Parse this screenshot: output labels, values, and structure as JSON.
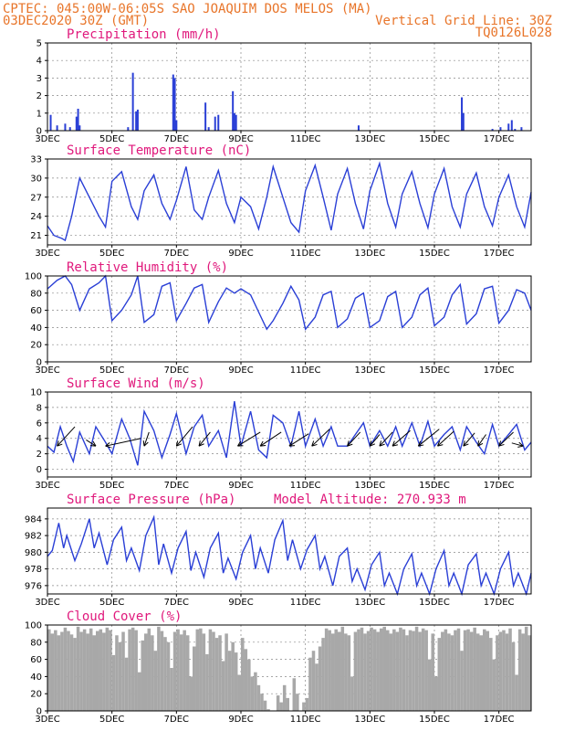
{
  "header": {
    "line1": "CPTEC:   045:00W-06:05S  SAO JOAQUIM DOS MELOS (MA)",
    "line2_left": "03DEC2020 30Z (GMT)",
    "line2_right": "Vertical Grid Line: 30Z",
    "line3_right": "TQ0126L028"
  },
  "colors": {
    "header": "#e8752a",
    "panel_title": "#e0197c",
    "series": "#2a3fd6",
    "cloud": "#a8a8a8"
  },
  "x_axis": {
    "start_day": 3,
    "end_day": 18,
    "tick_days": [
      3,
      5,
      7,
      9,
      11,
      13,
      15,
      17
    ],
    "tick_labels": [
      "3DEC",
      "5DEC",
      "7DEC",
      "9DEC",
      "11DEC",
      "13DEC",
      "15DEC",
      "17DEC"
    ]
  },
  "chart_data": [
    {
      "id": "precip",
      "type": "bar",
      "title": "Precipitation (mm/h)",
      "ylim": [
        0,
        5
      ],
      "yticks": [
        0,
        1,
        2,
        3,
        4,
        5
      ],
      "points": [
        [
          3.1,
          0.9
        ],
        [
          3.3,
          0.3
        ],
        [
          3.55,
          0.4
        ],
        [
          3.7,
          0.2
        ],
        [
          3.9,
          0.8
        ],
        [
          3.95,
          1.25
        ],
        [
          4.0,
          0.3
        ],
        [
          5.5,
          0.2
        ],
        [
          5.65,
          3.3
        ],
        [
          5.75,
          1.1
        ],
        [
          5.8,
          1.2
        ],
        [
          6.9,
          3.2
        ],
        [
          6.95,
          3.0
        ],
        [
          7.0,
          0.6
        ],
        [
          7.9,
          1.6
        ],
        [
          8.0,
          0.2
        ],
        [
          8.2,
          0.8
        ],
        [
          8.3,
          0.9
        ],
        [
          8.75,
          2.25
        ],
        [
          8.8,
          1.0
        ],
        [
          8.85,
          0.9
        ],
        [
          12.65,
          0.3
        ],
        [
          15.85,
          1.9
        ],
        [
          15.9,
          1.0
        ],
        [
          16.8,
          0.1
        ],
        [
          17.05,
          0.2
        ],
        [
          17.3,
          0.4
        ],
        [
          17.4,
          0.6
        ],
        [
          17.5,
          0.1
        ],
        [
          17.7,
          0.2
        ]
      ]
    },
    {
      "id": "temp",
      "type": "line",
      "title": "Surface Temperature (nC)",
      "ylim": [
        19.5,
        33
      ],
      "yticks": [
        21,
        24,
        27,
        30,
        33
      ],
      "x": [
        3.0,
        3.2,
        3.45,
        3.55,
        3.75,
        4.0,
        4.3,
        4.6,
        4.8,
        5.0,
        5.3,
        5.6,
        5.8,
        6.0,
        6.3,
        6.55,
        6.8,
        7.0,
        7.3,
        7.55,
        7.8,
        8.0,
        8.3,
        8.55,
        8.8,
        9.0,
        9.3,
        9.55,
        9.8,
        10.0,
        10.3,
        10.55,
        10.8,
        11.0,
        11.3,
        11.55,
        11.8,
        12.0,
        12.3,
        12.55,
        12.8,
        13.0,
        13.3,
        13.55,
        13.8,
        14.0,
        14.3,
        14.55,
        14.8,
        15.0,
        15.3,
        15.55,
        15.8,
        16.0,
        16.3,
        16.55,
        16.8,
        17.0,
        17.3,
        17.55,
        17.8,
        18.0
      ],
      "y": [
        22.5,
        21.0,
        20.5,
        20.2,
        24.0,
        30.0,
        27.0,
        24.0,
        22.3,
        29.5,
        31.0,
        25.5,
        23.5,
        28.0,
        30.5,
        26.0,
        23.5,
        26.5,
        31.8,
        25.0,
        23.5,
        27.0,
        31.2,
        26.0,
        23.0,
        27.0,
        25.5,
        22.0,
        27.0,
        31.8,
        27.0,
        23.0,
        21.5,
        28.0,
        32.0,
        27.0,
        21.8,
        27.5,
        31.5,
        26.0,
        22.0,
        28.0,
        32.3,
        26.0,
        22.3,
        27.5,
        31.0,
        26.0,
        22.2,
        27.5,
        31.5,
        25.5,
        22.3,
        27.5,
        30.8,
        25.5,
        22.5,
        27.0,
        30.5,
        25.5,
        22.3,
        27.8
      ]
    },
    {
      "id": "rh",
      "type": "line",
      "title": "Relative Humidity (%)",
      "ylim": [
        0,
        100
      ],
      "yticks": [
        0,
        20,
        40,
        60,
        80,
        100
      ],
      "x": [
        3.0,
        3.3,
        3.55,
        3.75,
        4.0,
        4.3,
        4.6,
        4.8,
        5.0,
        5.3,
        5.6,
        5.8,
        6.0,
        6.3,
        6.55,
        6.8,
        7.0,
        7.3,
        7.55,
        7.8,
        8.0,
        8.3,
        8.55,
        8.8,
        9.0,
        9.3,
        9.55,
        9.8,
        10.0,
        10.3,
        10.55,
        10.8,
        11.0,
        11.3,
        11.55,
        11.8,
        12.0,
        12.3,
        12.55,
        12.8,
        13.0,
        13.3,
        13.55,
        13.8,
        14.0,
        14.3,
        14.55,
        14.8,
        15.0,
        15.3,
        15.55,
        15.8,
        16.0,
        16.3,
        16.55,
        16.8,
        17.0,
        17.3,
        17.55,
        17.8,
        18.0
      ],
      "y": [
        85,
        95,
        100,
        90,
        60,
        85,
        92,
        100,
        48,
        60,
        78,
        100,
        46,
        55,
        88,
        92,
        48,
        68,
        86,
        90,
        46,
        70,
        86,
        80,
        85,
        78,
        58,
        38,
        48,
        68,
        88,
        72,
        38,
        52,
        78,
        82,
        40,
        50,
        74,
        80,
        40,
        48,
        76,
        82,
        40,
        52,
        78,
        86,
        42,
        52,
        78,
        90,
        44,
        56,
        85,
        88,
        45,
        60,
        84,
        80,
        60
      ]
    },
    {
      "id": "wind",
      "type": "line",
      "title": "Surface Wind (m/s)",
      "ylim": [
        -1,
        10
      ],
      "yticks": [
        0,
        2,
        4,
        6,
        8,
        10
      ],
      "x": [
        3.0,
        3.2,
        3.4,
        3.6,
        3.8,
        4.0,
        4.3,
        4.5,
        4.8,
        5.0,
        5.3,
        5.55,
        5.8,
        6.0,
        6.3,
        6.55,
        6.8,
        7.0,
        7.3,
        7.55,
        7.8,
        8.0,
        8.3,
        8.55,
        8.8,
        9.0,
        9.3,
        9.55,
        9.8,
        10.0,
        10.3,
        10.55,
        10.8,
        11.0,
        11.3,
        11.55,
        11.8,
        12.0,
        12.3,
        12.55,
        12.8,
        13.0,
        13.3,
        13.55,
        13.8,
        14.0,
        14.3,
        14.55,
        14.8,
        15.0,
        15.3,
        15.55,
        15.8,
        16.0,
        16.3,
        16.55,
        16.8,
        17.0,
        17.3,
        17.55,
        17.8,
        18.0
      ],
      "y": [
        3.0,
        2.2,
        5.5,
        3.0,
        1.0,
        4.8,
        2.0,
        5.5,
        3.5,
        2.0,
        6.5,
        4.0,
        0.5,
        7.5,
        5.0,
        1.5,
        4.5,
        7.2,
        2.0,
        5.5,
        7.0,
        3.0,
        5.0,
        1.5,
        8.8,
        3.0,
        7.5,
        2.5,
        1.5,
        7.0,
        6.0,
        3.0,
        7.5,
        3.0,
        6.5,
        3.0,
        5.5,
        3.0,
        3.0,
        4.5,
        6.0,
        3.0,
        5.0,
        3.0,
        5.5,
        3.0,
        6.0,
        3.0,
        6.2,
        3.0,
        4.5,
        5.5,
        2.5,
        5.5,
        3.5,
        2.0,
        5.8,
        3.0,
        4.5,
        5.8,
        2.5,
        3.5
      ],
      "vectors": [
        {
          "x": 3.3,
          "dx": 0.55,
          "dy": 2.5
        },
        {
          "x": 4.5,
          "dx": -0.3,
          "dy": 0.8
        },
        {
          "x": 4.8,
          "dx": 1.1,
          "dy": 1.0
        },
        {
          "x": 6.0,
          "dx": 0.15,
          "dy": 1.8
        },
        {
          "x": 7.0,
          "dx": 0.5,
          "dy": 2.5
        },
        {
          "x": 7.7,
          "dx": 0.35,
          "dy": 1.8
        },
        {
          "x": 8.9,
          "dx": 0.7,
          "dy": 1.8
        },
        {
          "x": 9.6,
          "dx": 0.65,
          "dy": 1.8
        },
        {
          "x": 10.5,
          "dx": 0.6,
          "dy": 1.6
        },
        {
          "x": 11.2,
          "dx": 0.55,
          "dy": 2.2
        },
        {
          "x": 12.3,
          "dx": 0.4,
          "dy": 1.8
        },
        {
          "x": 13.0,
          "dx": 0.3,
          "dy": 1.5
        },
        {
          "x": 13.3,
          "dx": 0.4,
          "dy": 1.8
        },
        {
          "x": 13.7,
          "dx": 0.55,
          "dy": 2.0
        },
        {
          "x": 14.5,
          "dx": 0.65,
          "dy": 2.2
        },
        {
          "x": 15.1,
          "dx": 0.5,
          "dy": 1.9
        },
        {
          "x": 15.9,
          "dx": 0.35,
          "dy": 1.7
        },
        {
          "x": 16.35,
          "dx": 0.25,
          "dy": 1.5
        },
        {
          "x": 17.0,
          "dx": 0.45,
          "dy": 1.8
        },
        {
          "x": 17.75,
          "dx": -0.35,
          "dy": 0.4
        }
      ]
    },
    {
      "id": "press",
      "type": "line",
      "title": "Surface Pressure (hPa)",
      "extra_label": "Model Altitude: 270.933 m",
      "ylim": [
        975,
        985.3
      ],
      "yticks": [
        976,
        978,
        980,
        982,
        984
      ],
      "x": [
        3.0,
        3.15,
        3.35,
        3.5,
        3.6,
        3.85,
        4.05,
        4.3,
        4.45,
        4.6,
        4.85,
        5.05,
        5.3,
        5.45,
        5.6,
        5.85,
        6.05,
        6.3,
        6.45,
        6.6,
        6.85,
        7.05,
        7.3,
        7.45,
        7.6,
        7.85,
        8.05,
        8.3,
        8.45,
        8.6,
        8.85,
        9.05,
        9.3,
        9.45,
        9.6,
        9.85,
        10.05,
        10.3,
        10.45,
        10.6,
        10.85,
        11.05,
        11.3,
        11.45,
        11.6,
        11.85,
        12.05,
        12.3,
        12.45,
        12.6,
        12.85,
        13.05,
        13.3,
        13.45,
        13.6,
        13.85,
        14.05,
        14.3,
        14.45,
        14.6,
        14.85,
        15.05,
        15.3,
        15.45,
        15.6,
        15.85,
        16.05,
        16.3,
        16.45,
        16.6,
        16.85,
        17.05,
        17.3,
        17.45,
        17.6,
        17.85,
        18.0
      ],
      "y": [
        979.5,
        980.2,
        983.5,
        980.5,
        982.0,
        979.0,
        981.0,
        984.0,
        980.5,
        982.3,
        978.5,
        981.5,
        983.0,
        979.0,
        980.5,
        977.8,
        982.0,
        984.2,
        978.5,
        981.0,
        977.5,
        980.5,
        982.5,
        977.8,
        980.0,
        977.0,
        980.5,
        982.3,
        977.5,
        979.3,
        976.8,
        980.0,
        982.0,
        978.0,
        980.5,
        977.5,
        981.5,
        983.8,
        979.0,
        981.5,
        978.0,
        980.3,
        982.0,
        978.0,
        979.5,
        976.0,
        979.5,
        980.5,
        976.5,
        978.0,
        975.5,
        978.5,
        980.0,
        976.0,
        977.5,
        975.0,
        978.0,
        979.8,
        976.0,
        977.5,
        975.0,
        978.0,
        980.2,
        976.0,
        977.5,
        975.0,
        978.5,
        979.8,
        976.0,
        977.5,
        975.0,
        978.0,
        980.0,
        976.0,
        977.5,
        975.0,
        977.5
      ]
    },
    {
      "id": "cloud",
      "type": "area",
      "title": "Cloud Cover (%)",
      "ylim": [
        0,
        100
      ],
      "yticks": [
        0,
        20,
        40,
        60,
        80,
        100
      ],
      "x": [
        3.0,
        3.1,
        3.2,
        3.3,
        3.4,
        3.5,
        3.6,
        3.7,
        3.8,
        3.9,
        4.0,
        4.1,
        4.2,
        4.3,
        4.4,
        4.5,
        4.6,
        4.7,
        4.8,
        4.9,
        5.0,
        5.1,
        5.2,
        5.3,
        5.4,
        5.5,
        5.6,
        5.7,
        5.8,
        5.9,
        6.0,
        6.1,
        6.2,
        6.3,
        6.4,
        6.5,
        6.6,
        6.7,
        6.8,
        6.9,
        7.0,
        7.1,
        7.2,
        7.3,
        7.4,
        7.5,
        7.6,
        7.7,
        7.8,
        7.9,
        8.0,
        8.1,
        8.2,
        8.3,
        8.4,
        8.5,
        8.6,
        8.7,
        8.8,
        8.9,
        9.0,
        9.1,
        9.2,
        9.3,
        9.4,
        9.5,
        9.6,
        9.7,
        9.8,
        9.9,
        10.0,
        10.1,
        10.2,
        10.3,
        10.4,
        10.5,
        10.6,
        10.7,
        10.8,
        10.9,
        11.0,
        11.1,
        11.2,
        11.3,
        11.4,
        11.5,
        11.6,
        11.7,
        11.8,
        11.9,
        12.0,
        12.1,
        12.2,
        12.3,
        12.4,
        12.5,
        12.6,
        12.7,
        12.8,
        12.9,
        13.0,
        13.1,
        13.2,
        13.3,
        13.4,
        13.5,
        13.6,
        13.7,
        13.8,
        13.9,
        14.0,
        14.1,
        14.2,
        14.3,
        14.4,
        14.5,
        14.6,
        14.7,
        14.8,
        14.9,
        15.0,
        15.1,
        15.2,
        15.3,
        15.4,
        15.5,
        15.6,
        15.7,
        15.8,
        15.9,
        16.0,
        16.1,
        16.2,
        16.3,
        16.4,
        16.5,
        16.6,
        16.7,
        16.8,
        16.9,
        17.0,
        17.1,
        17.2,
        17.3,
        17.4,
        17.5,
        17.6,
        17.7,
        17.8,
        17.9,
        18.0
      ],
      "y": [
        95,
        90,
        94,
        88,
        92,
        97,
        93,
        89,
        85,
        98,
        92,
        95,
        90,
        96,
        88,
        93,
        95,
        91,
        97,
        94,
        65,
        88,
        80,
        92,
        62,
        95,
        97,
        94,
        45,
        82,
        90,
        96,
        88,
        70,
        98,
        93,
        86,
        80,
        50,
        92,
        95,
        89,
        94,
        88,
        40,
        75,
        95,
        96,
        90,
        66,
        95,
        92,
        85,
        88,
        58,
        90,
        70,
        80,
        68,
        42,
        85,
        72,
        60,
        40,
        45,
        30,
        20,
        12,
        2,
        0,
        0,
        18,
        10,
        30,
        15,
        0,
        38,
        20,
        0,
        10,
        15,
        62,
        70,
        55,
        75,
        85,
        96,
        94,
        90,
        95,
        92,
        98,
        90,
        88,
        40,
        92,
        95,
        97,
        90,
        93,
        97,
        95,
        92,
        96,
        98,
        94,
        90,
        95,
        92,
        97,
        95,
        88,
        94,
        93,
        98,
        92,
        96,
        94,
        60,
        90,
        40,
        85,
        92,
        95,
        90,
        88,
        94,
        96,
        70,
        94,
        95,
        92,
        97,
        90,
        88,
        95,
        93,
        85,
        60,
        88,
        92,
        94,
        90,
        96,
        80,
        42,
        95,
        90,
        98,
        88,
        94
      ]
    }
  ]
}
